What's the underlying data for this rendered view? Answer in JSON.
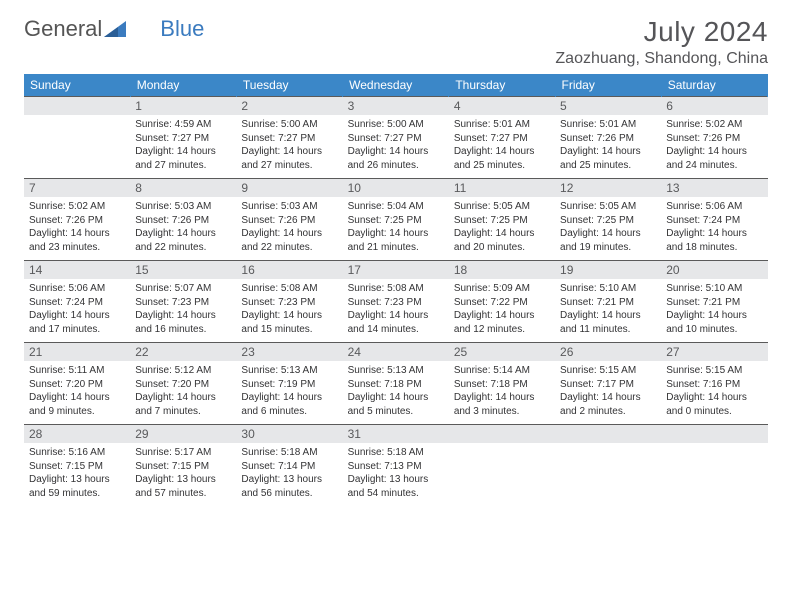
{
  "brand": {
    "part1": "General",
    "part2": "Blue"
  },
  "title": "July 2024",
  "location": "Zaozhuang, Shandong, China",
  "colors": {
    "header_bg": "#3b87c8",
    "daynum_bg": "#e6e7e9",
    "text": "#333335",
    "title": "#555558"
  },
  "dow": [
    "Sunday",
    "Monday",
    "Tuesday",
    "Wednesday",
    "Thursday",
    "Friday",
    "Saturday"
  ],
  "weeks": [
    [
      null,
      {
        "n": "1",
        "sr": "4:59 AM",
        "ss": "7:27 PM",
        "dl": "14 hours and 27 minutes."
      },
      {
        "n": "2",
        "sr": "5:00 AM",
        "ss": "7:27 PM",
        "dl": "14 hours and 27 minutes."
      },
      {
        "n": "3",
        "sr": "5:00 AM",
        "ss": "7:27 PM",
        "dl": "14 hours and 26 minutes."
      },
      {
        "n": "4",
        "sr": "5:01 AM",
        "ss": "7:27 PM",
        "dl": "14 hours and 25 minutes."
      },
      {
        "n": "5",
        "sr": "5:01 AM",
        "ss": "7:26 PM",
        "dl": "14 hours and 25 minutes."
      },
      {
        "n": "6",
        "sr": "5:02 AM",
        "ss": "7:26 PM",
        "dl": "14 hours and 24 minutes."
      }
    ],
    [
      {
        "n": "7",
        "sr": "5:02 AM",
        "ss": "7:26 PM",
        "dl": "14 hours and 23 minutes."
      },
      {
        "n": "8",
        "sr": "5:03 AM",
        "ss": "7:26 PM",
        "dl": "14 hours and 22 minutes."
      },
      {
        "n": "9",
        "sr": "5:03 AM",
        "ss": "7:26 PM",
        "dl": "14 hours and 22 minutes."
      },
      {
        "n": "10",
        "sr": "5:04 AM",
        "ss": "7:25 PM",
        "dl": "14 hours and 21 minutes."
      },
      {
        "n": "11",
        "sr": "5:05 AM",
        "ss": "7:25 PM",
        "dl": "14 hours and 20 minutes."
      },
      {
        "n": "12",
        "sr": "5:05 AM",
        "ss": "7:25 PM",
        "dl": "14 hours and 19 minutes."
      },
      {
        "n": "13",
        "sr": "5:06 AM",
        "ss": "7:24 PM",
        "dl": "14 hours and 18 minutes."
      }
    ],
    [
      {
        "n": "14",
        "sr": "5:06 AM",
        "ss": "7:24 PM",
        "dl": "14 hours and 17 minutes."
      },
      {
        "n": "15",
        "sr": "5:07 AM",
        "ss": "7:23 PM",
        "dl": "14 hours and 16 minutes."
      },
      {
        "n": "16",
        "sr": "5:08 AM",
        "ss": "7:23 PM",
        "dl": "14 hours and 15 minutes."
      },
      {
        "n": "17",
        "sr": "5:08 AM",
        "ss": "7:23 PM",
        "dl": "14 hours and 14 minutes."
      },
      {
        "n": "18",
        "sr": "5:09 AM",
        "ss": "7:22 PM",
        "dl": "14 hours and 12 minutes."
      },
      {
        "n": "19",
        "sr": "5:10 AM",
        "ss": "7:21 PM",
        "dl": "14 hours and 11 minutes."
      },
      {
        "n": "20",
        "sr": "5:10 AM",
        "ss": "7:21 PM",
        "dl": "14 hours and 10 minutes."
      }
    ],
    [
      {
        "n": "21",
        "sr": "5:11 AM",
        "ss": "7:20 PM",
        "dl": "14 hours and 9 minutes."
      },
      {
        "n": "22",
        "sr": "5:12 AM",
        "ss": "7:20 PM",
        "dl": "14 hours and 7 minutes."
      },
      {
        "n": "23",
        "sr": "5:13 AM",
        "ss": "7:19 PM",
        "dl": "14 hours and 6 minutes."
      },
      {
        "n": "24",
        "sr": "5:13 AM",
        "ss": "7:18 PM",
        "dl": "14 hours and 5 minutes."
      },
      {
        "n": "25",
        "sr": "5:14 AM",
        "ss": "7:18 PM",
        "dl": "14 hours and 3 minutes."
      },
      {
        "n": "26",
        "sr": "5:15 AM",
        "ss": "7:17 PM",
        "dl": "14 hours and 2 minutes."
      },
      {
        "n": "27",
        "sr": "5:15 AM",
        "ss": "7:16 PM",
        "dl": "14 hours and 0 minutes."
      }
    ],
    [
      {
        "n": "28",
        "sr": "5:16 AM",
        "ss": "7:15 PM",
        "dl": "13 hours and 59 minutes."
      },
      {
        "n": "29",
        "sr": "5:17 AM",
        "ss": "7:15 PM",
        "dl": "13 hours and 57 minutes."
      },
      {
        "n": "30",
        "sr": "5:18 AM",
        "ss": "7:14 PM",
        "dl": "13 hours and 56 minutes."
      },
      {
        "n": "31",
        "sr": "5:18 AM",
        "ss": "7:13 PM",
        "dl": "13 hours and 54 minutes."
      },
      null,
      null,
      null
    ]
  ],
  "labels": {
    "sunrise": "Sunrise:",
    "sunset": "Sunset:",
    "daylight": "Daylight:"
  }
}
